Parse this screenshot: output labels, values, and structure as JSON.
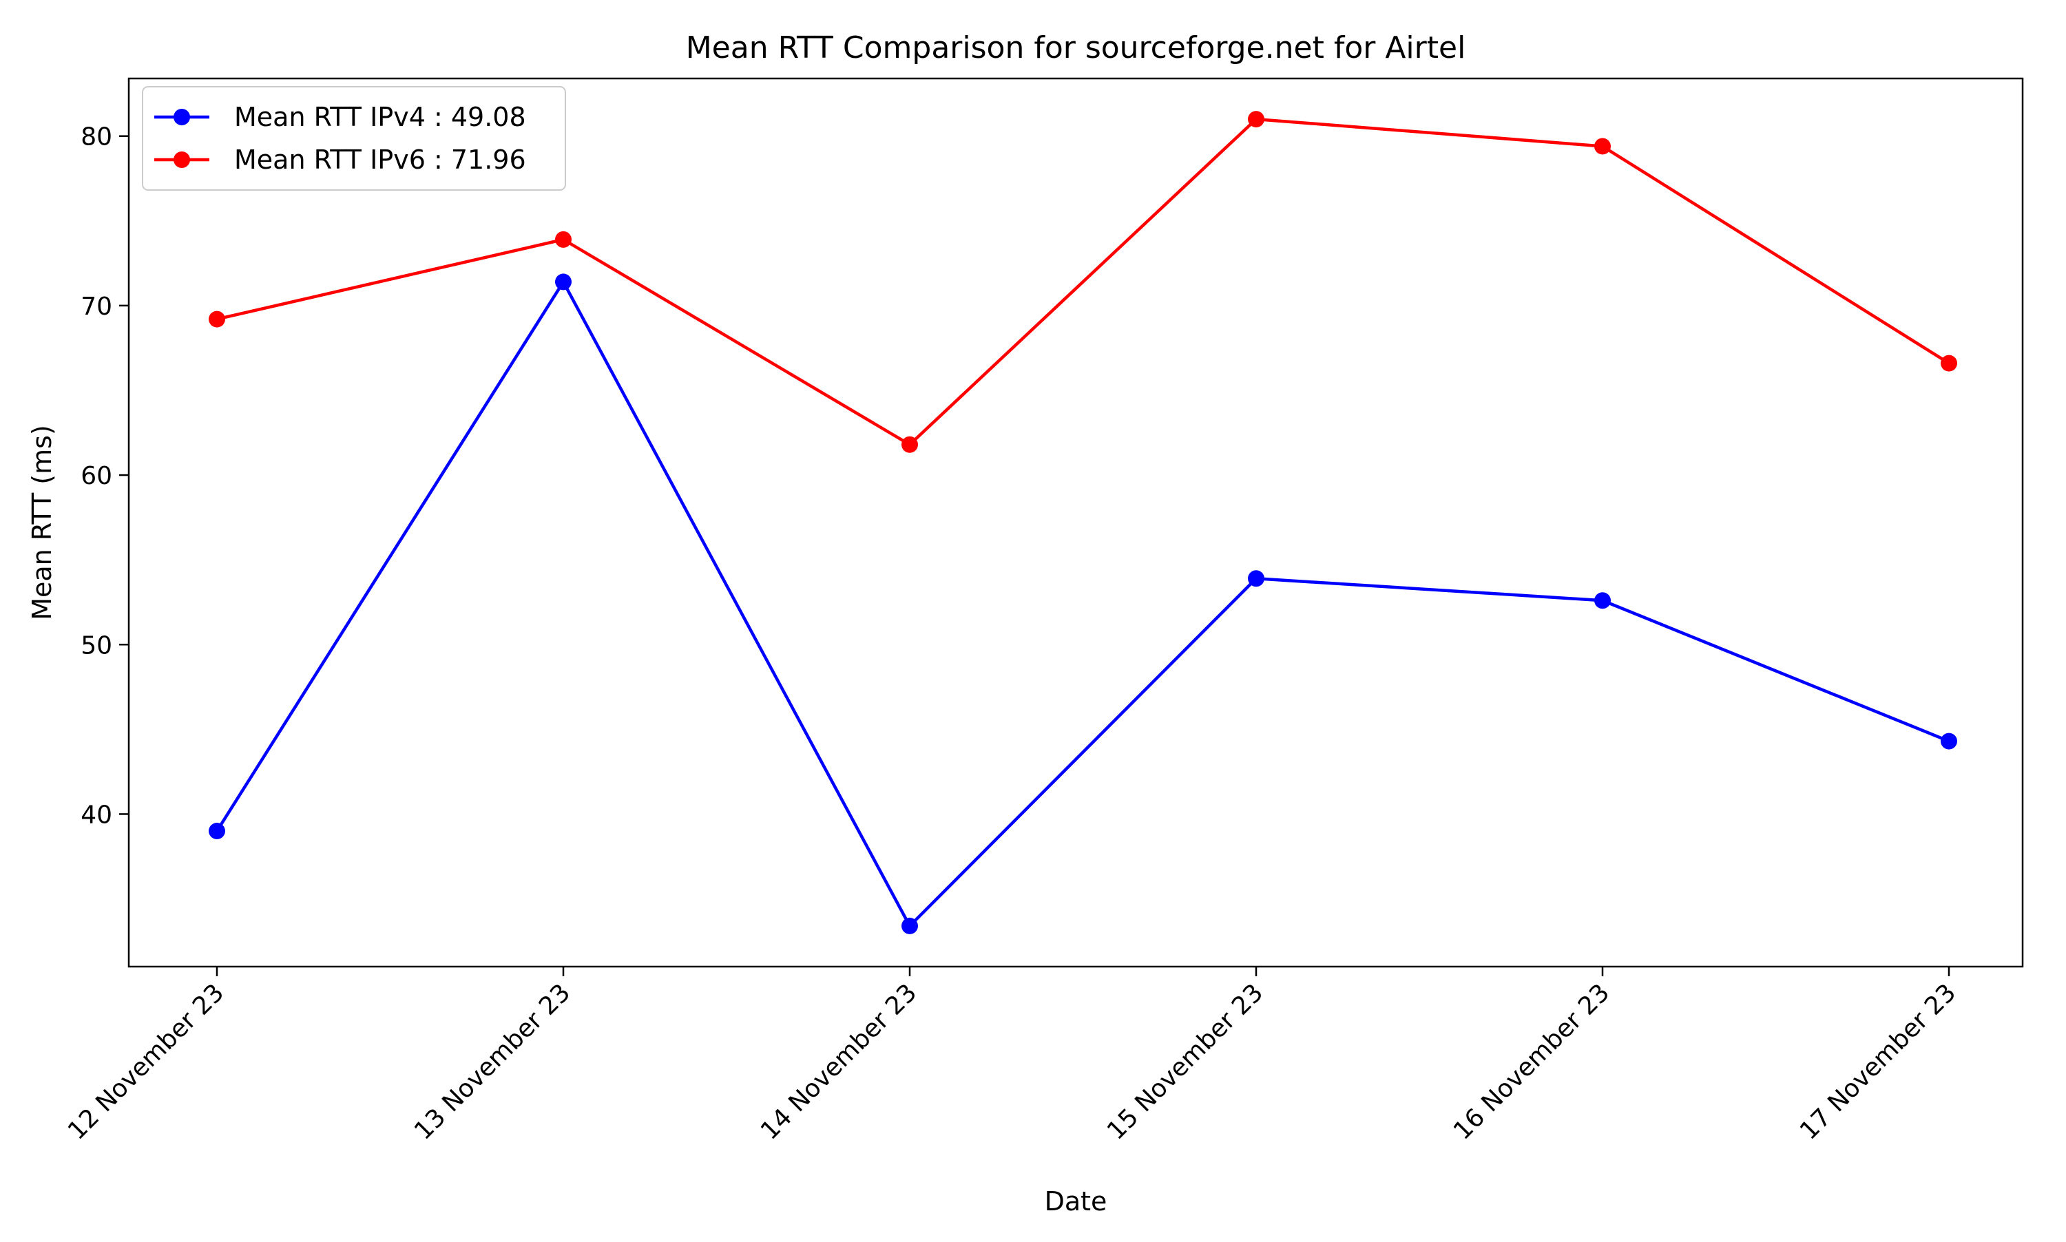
{
  "chart_data": {
    "type": "line",
    "title": "Mean RTT Comparison for sourceforge.net for Airtel",
    "xlabel": "Date",
    "ylabel": "Mean RTT (ms)",
    "categories": [
      "12 November 23",
      "13 November 23",
      "14 November 23",
      "15 November 23",
      "16 November 23",
      "17 November 23"
    ],
    "ylim": [
      31,
      83.4
    ],
    "yticks": [
      40,
      50,
      60,
      70,
      80
    ],
    "grid": false,
    "legend_position": "top-left",
    "series": [
      {
        "name": "Mean RTT IPv4 : 49.08",
        "color": "#0000ff",
        "marker": "circle",
        "values": [
          39.0,
          71.4,
          33.4,
          53.9,
          52.6,
          44.3
        ]
      },
      {
        "name": "Mean RTT IPv6 : 71.96",
        "color": "#ff0000",
        "marker": "circle",
        "values": [
          69.2,
          73.9,
          61.8,
          81.0,
          79.4,
          66.6
        ]
      }
    ]
  }
}
